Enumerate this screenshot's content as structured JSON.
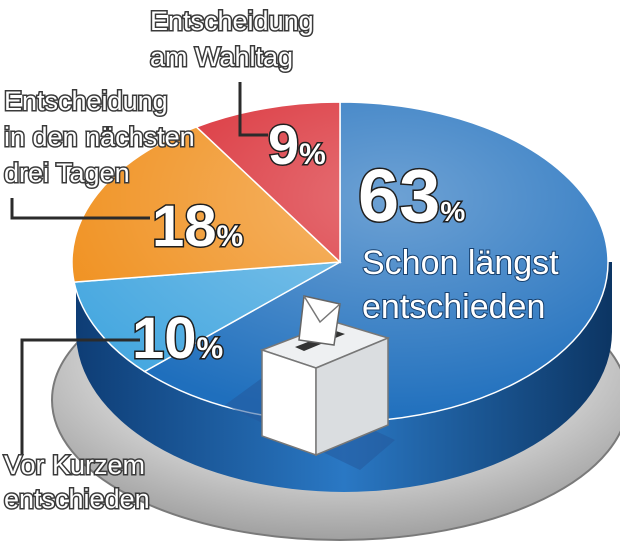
{
  "chart_data": {
    "type": "pie",
    "slices": [
      {
        "value": 63,
        "display": "63",
        "label_lines": [
          "Schon längst",
          "entschieden"
        ],
        "color": "#1f6fbd"
      },
      {
        "value": 10,
        "display": "10",
        "label_lines": [
          "Vor Kurzem",
          "entschieden"
        ],
        "color": "#47a8e0"
      },
      {
        "value": 18,
        "display": "18",
        "label_lines": [
          "Entscheidung",
          "in den nächsten",
          "drei Tagen"
        ],
        "color": "#f0901e"
      },
      {
        "value": 9,
        "display": "9",
        "label_lines": [
          "Entscheidung",
          "am Wahltag"
        ],
        "color": "#d8262e"
      }
    ],
    "percent_sign": "%"
  },
  "illustration": {
    "icon": "ballot-box-icon"
  }
}
